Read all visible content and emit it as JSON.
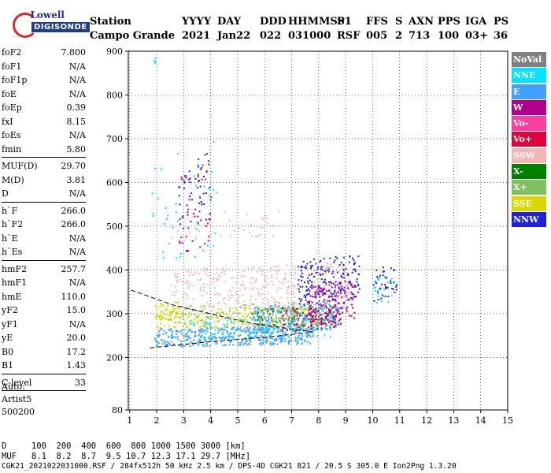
{
  "logo": {
    "line1": "Lowell",
    "line2": "DIGISONDE"
  },
  "header": {
    "labels": [
      "Station",
      "YYYY",
      "DAY",
      "DDD",
      "HHMMSS",
      "P1",
      "FFS",
      "S",
      "AXN",
      "PPS",
      "IGA",
      "PS"
    ],
    "values": [
      "Campo Grande",
      "2021",
      "Jan22",
      "022",
      "031000",
      "RSF",
      "005",
      "2",
      "713",
      "100",
      "03+",
      "36"
    ]
  },
  "params": {
    "group1": [
      {
        "label": "foF2",
        "value": "7.800"
      },
      {
        "label": "foF1",
        "value": "N/A"
      },
      {
        "label": "foF1p",
        "value": "N/A"
      },
      {
        "label": "foE",
        "value": "N/A"
      },
      {
        "label": "foEp",
        "value": "0.39"
      },
      {
        "label": "fxI",
        "value": "8.15"
      },
      {
        "label": "foEs",
        "value": "N/A"
      },
      {
        "label": "fmin",
        "value": "5.80"
      }
    ],
    "group2": [
      {
        "label": "MUF(D)",
        "value": "29.70"
      },
      {
        "label": "M(D)",
        "value": "3.81"
      },
      {
        "label": "D",
        "value": "N/A"
      }
    ],
    "group3": [
      {
        "label": "h`F",
        "value": "266.0"
      },
      {
        "label": "h`F2",
        "value": "266.0"
      },
      {
        "label": "h`E",
        "value": "N/A"
      },
      {
        "label": "h`Es",
        "value": "N/A"
      }
    ],
    "group4": [
      {
        "label": "hmF2",
        "value": "257.7"
      },
      {
        "label": "hmF1",
        "value": "N/A"
      },
      {
        "label": "hmE",
        "value": "110.0"
      },
      {
        "label": "yF2",
        "value": "15.0"
      },
      {
        "label": "yF1",
        "value": "N/A"
      },
      {
        "label": "yE",
        "value": "20.0"
      },
      {
        "label": "B0",
        "value": "17.2"
      },
      {
        "label": "B1",
        "value": "1.43"
      }
    ],
    "group5": [
      {
        "label": "C-level",
        "value": "33"
      }
    ]
  },
  "auto": {
    "line1": "Auto:",
    "line2": "Artist5",
    "line3": "500200"
  },
  "legend": [
    {
      "name": "NoVal",
      "color": "#808080"
    },
    {
      "name": "NNE",
      "color": "#00e5ff"
    },
    {
      "name": "E",
      "color": "#3fa0ff"
    },
    {
      "name": "W",
      "color": "#b0008c"
    },
    {
      "name": "Vo-",
      "color": "#ff3fa0"
    },
    {
      "name": "Vo+",
      "color": "#e0003c"
    },
    {
      "name": "SSW",
      "color": "#f5b5b5"
    },
    {
      "name": "X-",
      "color": "#008000"
    },
    {
      "name": "X+",
      "color": "#80c060"
    },
    {
      "name": "SSE",
      "color": "#d8d800"
    },
    {
      "name": "NNW",
      "color": "#2020e0"
    }
  ],
  "chart_data": {
    "type": "scatter",
    "x_ticks": [
      1,
      2,
      3,
      4,
      5,
      6,
      7,
      8,
      9,
      10,
      11,
      12,
      13,
      14,
      15
    ],
    "y_ticks": [
      80,
      200,
      300,
      400,
      500,
      600,
      700,
      800,
      900
    ],
    "xlim": [
      0.95,
      15
    ],
    "ylim": [
      80,
      900
    ],
    "grid": true,
    "legend_position": "right",
    "trace_line": [
      [
        1.75,
        222
      ],
      [
        4,
        236
      ],
      [
        6,
        246
      ],
      [
        7.8,
        258
      ],
      [
        5.5,
        278
      ],
      [
        2.6,
        320
      ],
      [
        1.0,
        355
      ]
    ],
    "clusters": [
      {
        "series": "E",
        "x": [
          1.9,
          7.8
        ],
        "y": [
          225,
          275
        ],
        "n": 420
      },
      {
        "series": "E",
        "x": [
          5.5,
          8.8
        ],
        "y": [
          255,
          330
        ],
        "n": 300
      },
      {
        "series": "NNE",
        "x": [
          3.0,
          8.5
        ],
        "y": [
          240,
          300
        ],
        "n": 120
      },
      {
        "series": "SSE",
        "x": [
          2.0,
          8.0
        ],
        "y": [
          265,
          320
        ],
        "n": 200
      },
      {
        "series": "X+",
        "x": [
          2.5,
          8.5
        ],
        "y": [
          260,
          330
        ],
        "n": 110
      },
      {
        "series": "X-",
        "x": [
          5.5,
          8.5
        ],
        "y": [
          270,
          320
        ],
        "n": 60
      },
      {
        "series": "SSW",
        "x": [
          2.5,
          9.2
        ],
        "y": [
          300,
          420
        ],
        "n": 360
      },
      {
        "series": "W",
        "x": [
          7.5,
          9.3
        ],
        "y": [
          270,
          380
        ],
        "n": 160
      },
      {
        "series": "Vo+",
        "x": [
          6.5,
          8.8
        ],
        "y": [
          260,
          320
        ],
        "n": 70
      },
      {
        "series": "NNW",
        "x": [
          7.2,
          9.5
        ],
        "y": [
          320,
          440
        ],
        "n": 170
      },
      {
        "series": "NNW",
        "x": [
          2.8,
          4.0
        ],
        "y": [
          480,
          680
        ],
        "n": 45
      },
      {
        "series": "W",
        "x": [
          2.8,
          4.0
        ],
        "y": [
          430,
          650
        ],
        "n": 45
      },
      {
        "series": "SSW",
        "x": [
          2.5,
          6.5
        ],
        "y": [
          460,
          540
        ],
        "n": 40
      },
      {
        "series": "NNE",
        "x": [
          1.8,
          4.2
        ],
        "y": [
          400,
          700
        ],
        "n": 40
      },
      {
        "series": "NNW",
        "x": [
          10.0,
          10.9
        ],
        "y": [
          330,
          420
        ],
        "n": 40
      },
      {
        "series": "NNE",
        "x": [
          10.0,
          10.9
        ],
        "y": [
          320,
          400
        ],
        "n": 20
      },
      {
        "series": "SSE",
        "x": [
          1.9,
          2.8
        ],
        "y": [
          285,
          330
        ],
        "n": 40
      },
      {
        "series": "NNE",
        "x": [
          1.85,
          1.95
        ],
        "y": [
          870,
          895
        ],
        "n": 4
      }
    ]
  },
  "footer": {
    "line1": "D     100  200  400  600  800 1000 1500 3000 [km]",
    "line2": "MUF   8.1  8.2  8.7  9.5 10.7 12.3 17.1 29.7 [MHz]",
    "line3": "CGK21_2021022031000.RSF / 284fx512h 50 kHz 2.5 km / DPS-4D CGK21 821 / 20.5 S 305.0 E Ion2Png 1.3.20"
  }
}
